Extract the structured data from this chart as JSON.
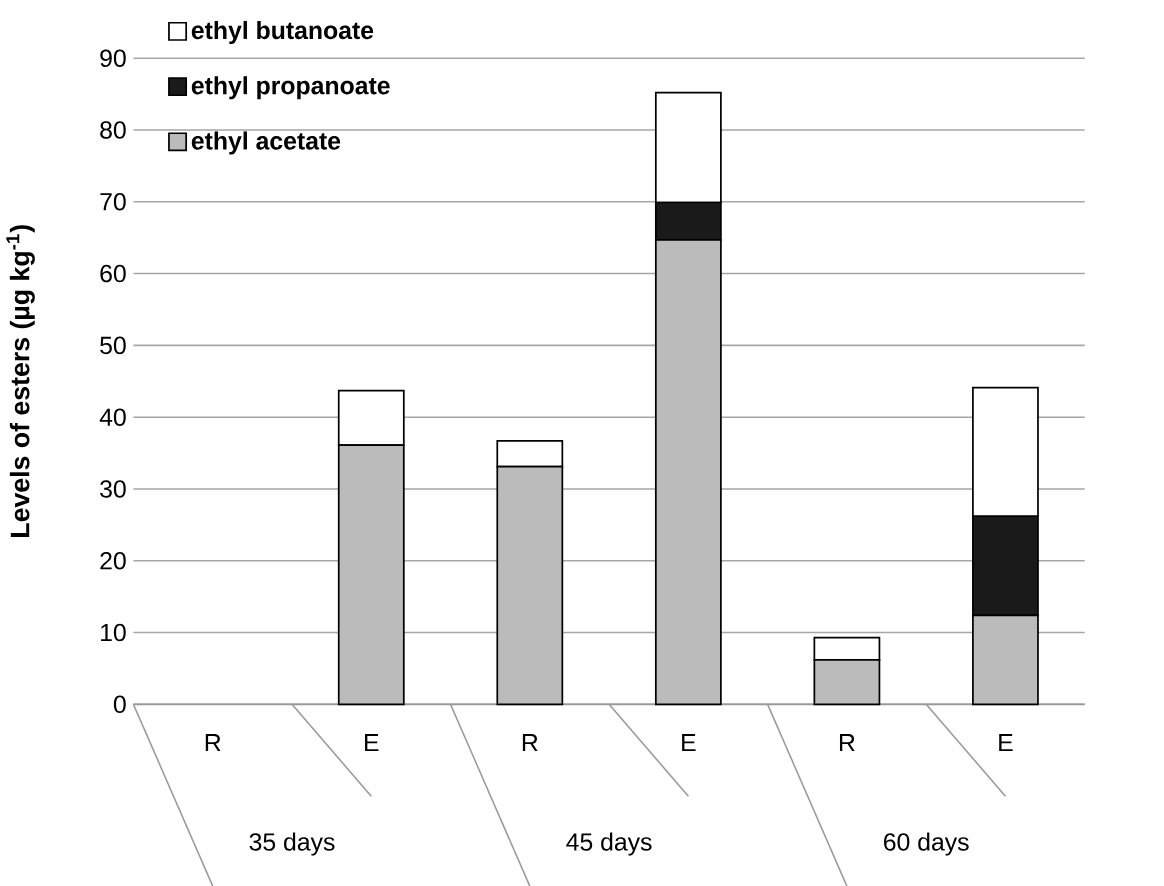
{
  "chart_data": {
    "type": "bar",
    "stacked": true,
    "categories": [
      "R",
      "E",
      "R",
      "E",
      "R",
      "E"
    ],
    "series": [
      {
        "name": "ethyl acetate",
        "color": "#bbbbbb",
        "values": [
          0,
          36.1,
          33.1,
          64.7,
          6.2,
          12.4
        ]
      },
      {
        "name": "ethyl propanoate",
        "color": "#1a1a1a",
        "values": [
          0,
          0,
          0,
          5.2,
          0,
          13.8
        ]
      },
      {
        "name": "ethyl butanoate",
        "color": "#ffffff",
        "values": [
          0,
          7.6,
          3.6,
          15.3,
          3.1,
          17.9
        ]
      }
    ],
    "ylabel": "Levels of esters (µg kg$^{-1}$)",
    "ylim": [
      0,
      90
    ],
    "yticks": [
      0,
      10,
      20,
      30,
      40,
      50,
      60,
      70,
      80,
      90
    ],
    "annotations": [
      "35 days",
      "45 days",
      "60 days"
    ],
    "grid": "y",
    "legend": "top left"
  }
}
